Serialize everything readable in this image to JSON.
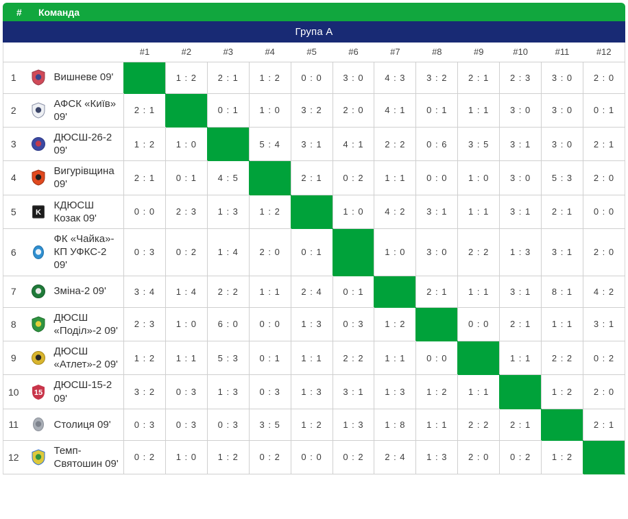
{
  "header": {
    "rank": "#",
    "team": "Команда"
  },
  "group": {
    "title": "Група А"
  },
  "columns": [
    "#1",
    "#2",
    "#3",
    "#4",
    "#5",
    "#6",
    "#7",
    "#8",
    "#9",
    "#10",
    "#11",
    "#12"
  ],
  "colors": {
    "header_green": "#11a73e",
    "diagonal_green": "#00a23a",
    "navy": "#182a74"
  },
  "teams": [
    {
      "rank": "1",
      "name": "Вишневе 09'",
      "logo": {
        "shape": "shield",
        "bg": "#d04a58",
        "fg": "#38468e",
        "stroke": "#9a3b49",
        "label": ""
      },
      "results": [
        null,
        "1:2",
        "2:1",
        "1:2",
        "0:0",
        "3:0",
        "4:3",
        "3:2",
        "2:1",
        "2:3",
        "3:0",
        "2:0"
      ]
    },
    {
      "rank": "2",
      "name": "АФСК «Київ» 09'",
      "logo": {
        "shape": "shield",
        "bg": "#eef0f4",
        "fg": "#3a4468",
        "stroke": "#8a90a6",
        "label": ""
      },
      "results": [
        "2:1",
        null,
        "0:1",
        "1:0",
        "3:2",
        "2:0",
        "4:1",
        "0:1",
        "1:1",
        "3:0",
        "3:0",
        "0:1"
      ]
    },
    {
      "rank": "3",
      "name": "ДЮСШ-26-2 09'",
      "logo": {
        "shape": "circle",
        "bg": "#3c49a2",
        "fg": "#c23b4b",
        "stroke": "#2d3a86",
        "label": ""
      },
      "results": [
        "1:2",
        "1:0",
        null,
        "5:4",
        "3:1",
        "4:1",
        "2:2",
        "0:6",
        "3:5",
        "3:1",
        "3:0",
        "2:1"
      ]
    },
    {
      "rank": "4",
      "name": "Вигурівщина 09'",
      "logo": {
        "shape": "shield",
        "bg": "#e0491f",
        "fg": "#1e1e1e",
        "stroke": "#9c3214",
        "label": ""
      },
      "results": [
        "2:1",
        "0:1",
        "4:5",
        null,
        "2:1",
        "0:2",
        "1:1",
        "0:0",
        "1:0",
        "3:0",
        "5:3",
        "2:0"
      ]
    },
    {
      "rank": "5",
      "name": "КДЮСШ Козак 09'",
      "logo": {
        "shape": "square",
        "bg": "#1c1c1c",
        "fg": "#1c1c1c",
        "stroke": "#444444",
        "label": "K"
      },
      "results": [
        "0:0",
        "2:3",
        "1:3",
        "1:2",
        null,
        "1:0",
        "4:2",
        "3:1",
        "1:1",
        "3:1",
        "2:1",
        "0:0"
      ]
    },
    {
      "rank": "6",
      "name": "ФК «Чайка»-КП УФКС-2 09'",
      "logo": {
        "shape": "oval",
        "bg": "#2f8fd0",
        "fg": "#e9f2fa",
        "stroke": "#2271a8",
        "label": ""
      },
      "results": [
        "0:3",
        "0:2",
        "1:4",
        "2:0",
        "0:1",
        null,
        "1:0",
        "3:0",
        "2:2",
        "1:3",
        "3:1",
        "2:0"
      ]
    },
    {
      "rank": "7",
      "name": "Зміна-2 09'",
      "logo": {
        "shape": "circle",
        "bg": "#1f7a39",
        "fg": "#e8e8e8",
        "stroke": "#155c29",
        "label": ""
      },
      "results": [
        "3:4",
        "1:4",
        "2:2",
        "1:1",
        "2:4",
        "0:1",
        null,
        "2:1",
        "1:1",
        "3:1",
        "8:1",
        "4:2"
      ]
    },
    {
      "rank": "8",
      "name": "ДЮСШ «Поділ»-2 09'",
      "logo": {
        "shape": "shield",
        "bg": "#2f9440",
        "fg": "#e3cf3a",
        "stroke": "#1f6e2d",
        "label": ""
      },
      "results": [
        "2:3",
        "1:0",
        "6:0",
        "0:0",
        "1:3",
        "0:3",
        "1:2",
        null,
        "0:0",
        "2:1",
        "1:1",
        "3:1"
      ]
    },
    {
      "rank": "9",
      "name": "ДЮСШ «Атлет»-2 09'",
      "logo": {
        "shape": "circle",
        "bg": "#d9b52e",
        "fg": "#262626",
        "stroke": "#a6881d",
        "label": ""
      },
      "results": [
        "1:2",
        "1:1",
        "5:3",
        "0:1",
        "1:1",
        "2:2",
        "1:1",
        "0:0",
        null,
        "1:1",
        "2:2",
        "0:2"
      ]
    },
    {
      "rank": "10",
      "name": "ДЮСШ-15-2 09'",
      "logo": {
        "shape": "shield",
        "bg": "#c8354a",
        "fg": "#f2f2f2",
        "stroke": "#92industries2436",
        "label": "15"
      },
      "results": [
        "3:2",
        "0:3",
        "1:3",
        "0:3",
        "1:3",
        "3:1",
        "1:3",
        "1:2",
        "1:1",
        null,
        "1:2",
        "2:0"
      ]
    },
    {
      "rank": "11",
      "name": "Столиця 09'",
      "logo": {
        "shape": "oval",
        "bg": "#a9aeb6",
        "fg": "#7d828c",
        "stroke": "#8a8f98",
        "label": ""
      },
      "results": [
        "0:3",
        "0:3",
        "0:3",
        "3:5",
        "1:2",
        "1:3",
        "1:8",
        "1:1",
        "2:2",
        "2:1",
        null,
        "2:1"
      ]
    },
    {
      "rank": "12",
      "name": "Темп-Святошин 09'",
      "logo": {
        "shape": "shield",
        "bg": "#ddc93c",
        "fg": "#2f9440",
        "stroke": "#2f6fd0",
        "label": ""
      },
      "results": [
        "0:2",
        "1:0",
        "1:2",
        "0:2",
        "0:0",
        "0:2",
        "2:4",
        "1:3",
        "2:0",
        "0:2",
        "1:2",
        null
      ]
    }
  ]
}
